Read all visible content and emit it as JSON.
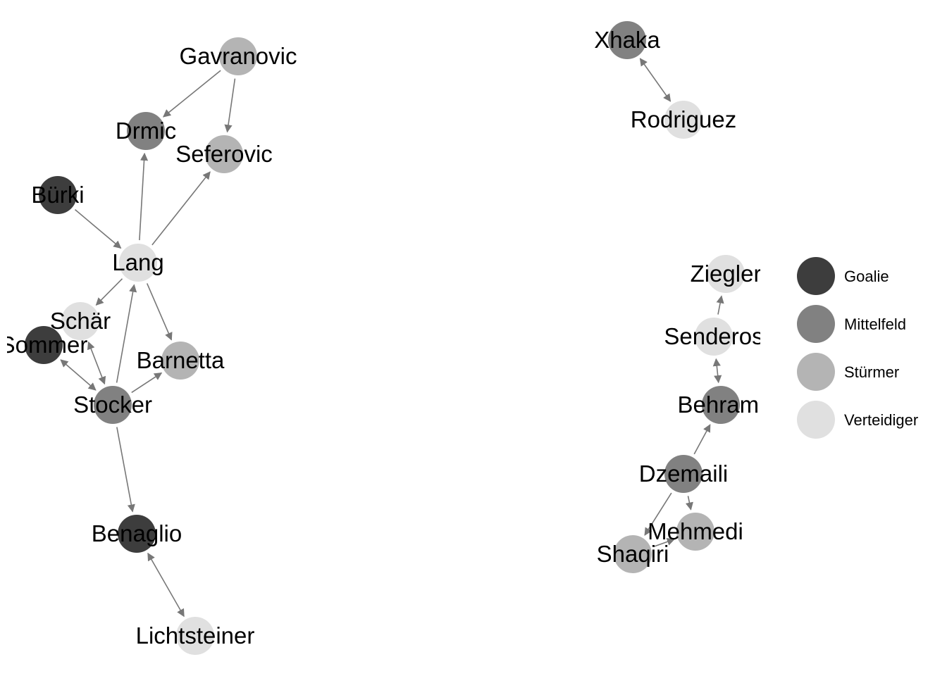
{
  "groups": [
    {
      "id": "goalie",
      "label": "Goalie",
      "color": "#3d3d3d"
    },
    {
      "id": "mittelfeld",
      "label": "Mittelfeld",
      "color": "#818181"
    },
    {
      "id": "stuermer",
      "label": "Stürmer",
      "color": "#b4b4b4"
    },
    {
      "id": "verteidiger",
      "label": "Verteidiger",
      "color": "#e0e0e0"
    }
  ],
  "nodes": [
    {
      "id": "gavranovic",
      "label": "Gavranovic",
      "group": "stuermer"
    },
    {
      "id": "drmic",
      "label": "Drmic",
      "group": "mittelfeld"
    },
    {
      "id": "seferovic",
      "label": "Seferovic",
      "group": "stuermer"
    },
    {
      "id": "buerki",
      "label": "Bürki",
      "group": "goalie"
    },
    {
      "id": "lang",
      "label": "Lang",
      "group": "verteidiger"
    },
    {
      "id": "schaer",
      "label": "Schär",
      "group": "verteidiger"
    },
    {
      "id": "sommer",
      "label": "Sommer",
      "group": "goalie"
    },
    {
      "id": "barnetta",
      "label": "Barnetta",
      "group": "stuermer"
    },
    {
      "id": "stocker",
      "label": "Stocker",
      "group": "mittelfeld"
    },
    {
      "id": "benaglio",
      "label": "Benaglio",
      "group": "goalie"
    },
    {
      "id": "lichtsteiner",
      "label": "Lichtsteiner",
      "group": "verteidiger"
    },
    {
      "id": "xhaka",
      "label": "Xhaka",
      "group": "mittelfeld"
    },
    {
      "id": "rodriguez",
      "label": "Rodriguez",
      "group": "verteidiger"
    },
    {
      "id": "ziegler",
      "label": "Ziegler",
      "group": "verteidiger"
    },
    {
      "id": "senderos",
      "label": "Senderos",
      "group": "verteidiger"
    },
    {
      "id": "behrami",
      "label": "Behrami",
      "group": "mittelfeld"
    },
    {
      "id": "dzemaili",
      "label": "Dzemaili",
      "group": "mittelfeld"
    },
    {
      "id": "mehmedi",
      "label": "Mehmedi",
      "group": "stuermer"
    },
    {
      "id": "shaqiri",
      "label": "Shaqiri",
      "group": "stuermer"
    }
  ],
  "edges": [
    {
      "from": "gavranovic",
      "to": "drmic",
      "bidirectional": false
    },
    {
      "from": "gavranovic",
      "to": "seferovic",
      "bidirectional": false
    },
    {
      "from": "lang",
      "to": "drmic",
      "bidirectional": false
    },
    {
      "from": "lang",
      "to": "seferovic",
      "bidirectional": false
    },
    {
      "from": "buerki",
      "to": "lang",
      "bidirectional": false
    },
    {
      "from": "lang",
      "to": "schaer",
      "bidirectional": false
    },
    {
      "from": "lang",
      "to": "barnetta",
      "bidirectional": false
    },
    {
      "from": "stocker",
      "to": "lang",
      "bidirectional": false
    },
    {
      "from": "schaer",
      "to": "stocker",
      "bidirectional": true
    },
    {
      "from": "sommer",
      "to": "stocker",
      "bidirectional": true
    },
    {
      "from": "stocker",
      "to": "barnetta",
      "bidirectional": false
    },
    {
      "from": "stocker",
      "to": "benaglio",
      "bidirectional": false
    },
    {
      "from": "benaglio",
      "to": "lichtsteiner",
      "bidirectional": true
    },
    {
      "from": "xhaka",
      "to": "rodriguez",
      "bidirectional": true
    },
    {
      "from": "senderos",
      "to": "ziegler",
      "bidirectional": false
    },
    {
      "from": "senderos",
      "to": "behrami",
      "bidirectional": true
    },
    {
      "from": "dzemaili",
      "to": "behrami",
      "bidirectional": false
    },
    {
      "from": "dzemaili",
      "to": "mehmedi",
      "bidirectional": false
    },
    {
      "from": "dzemaili",
      "to": "shaqiri",
      "bidirectional": false
    },
    {
      "from": "shaqiri",
      "to": "mehmedi",
      "bidirectional": false
    }
  ]
}
